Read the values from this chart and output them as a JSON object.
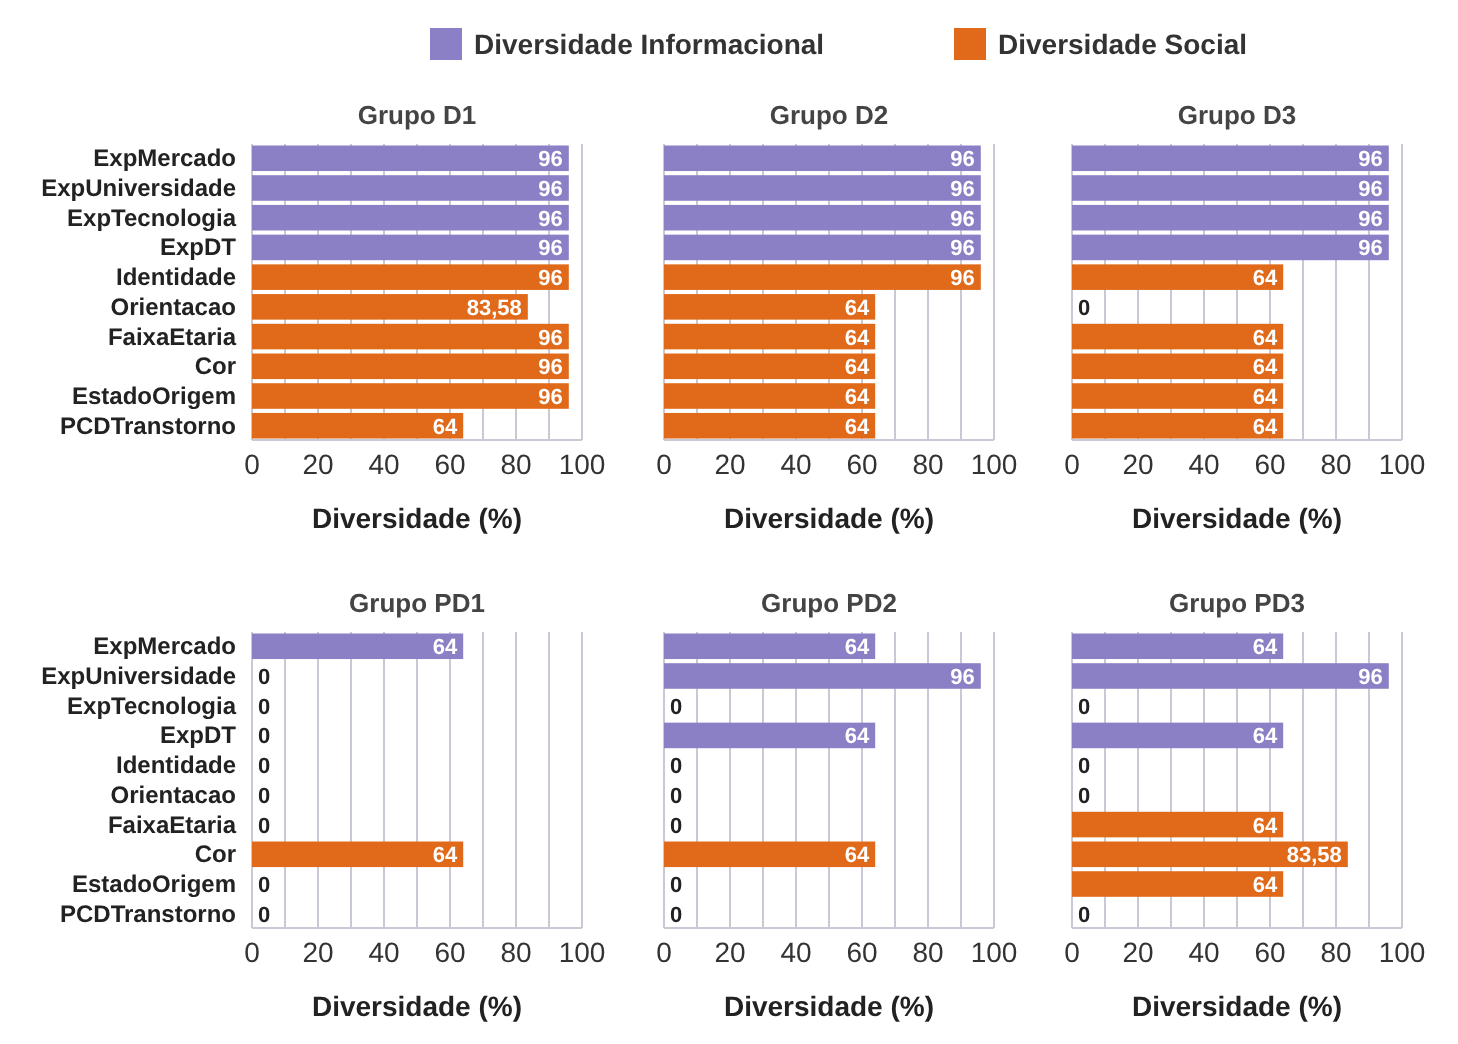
{
  "chart_data": [
    {
      "type": "bar",
      "orientation": "horizontal",
      "title": "Grupo D1",
      "xlabel": "Diversidade (%)",
      "legend": "top",
      "grid": "x",
      "xlim": [
        0,
        100
      ],
      "xticks": [
        0,
        {
          "value": 10,
          "label": null
        },
        20,
        {
          "value": 30,
          "label": null
        },
        40,
        {
          "value": 50,
          "label": null
        },
        60,
        {
          "value": 70,
          "label": null
        },
        80,
        {
          "value": 90,
          "label": null
        },
        100
      ],
      "categories": [
        "ExpMercado",
        "ExpUniversidade",
        "ExpTecnologia",
        "ExpDT",
        "Identidade",
        "Orientacao",
        "FaixaEtaria",
        "Cor",
        "EstadoOrigem",
        "PCDTranstorno"
      ],
      "series": [
        {
          "name": "Diversidade Informacional",
          "color": "#8b80c6",
          "values": [
            96,
            96,
            96,
            96,
            null,
            null,
            null,
            null,
            null,
            null
          ],
          "value_labels": [
            "96",
            "96",
            "96",
            "96",
            null,
            null,
            null,
            null,
            null,
            null
          ]
        },
        {
          "name": "Diversidade Social",
          "color": "#e0691a",
          "values": [
            null,
            null,
            null,
            null,
            96,
            83.58,
            96,
            96,
            96,
            64
          ],
          "value_labels": [
            null,
            null,
            null,
            null,
            "96",
            "83,58",
            "96",
            "96",
            "96",
            "64"
          ]
        }
      ]
    },
    {
      "type": "bar",
      "orientation": "horizontal",
      "title": "Grupo D2",
      "xlabel": "Diversidade (%)",
      "tick_labels": "x",
      "grid": "x",
      "xlim": [
        0,
        100
      ],
      "xticks": [
        0,
        {
          "value": 10,
          "label": null
        },
        20,
        {
          "value": 30,
          "label": null
        },
        40,
        {
          "value": 50,
          "label": null
        },
        60,
        {
          "value": 70,
          "label": null
        },
        80,
        {
          "value": 90,
          "label": null
        },
        100
      ],
      "categories": [
        null,
        null,
        null,
        null,
        null,
        null,
        null,
        null,
        null,
        null
      ],
      "series": [
        {
          "color": "#8b80c6",
          "values": [
            96,
            96,
            96,
            96,
            null,
            null,
            null,
            null,
            null,
            null
          ],
          "value_labels": [
            "96",
            "96",
            "96",
            "96",
            null,
            null,
            null,
            null,
            null,
            null
          ]
        },
        {
          "color": "#e0691a",
          "values": [
            null,
            null,
            null,
            null,
            96,
            64,
            64,
            64,
            64,
            64
          ],
          "value_labels": [
            null,
            null,
            null,
            null,
            "96",
            "64",
            "64",
            "64",
            "64",
            "64"
          ]
        }
      ]
    },
    {
      "type": "bar",
      "orientation": "horizontal",
      "title": "Grupo D3",
      "xlabel": "Diversidade (%)",
      "tick_labels": "x",
      "grid": "x",
      "xlim": [
        0,
        100
      ],
      "xticks": [
        0,
        {
          "value": 10,
          "label": null
        },
        20,
        {
          "value": 30,
          "label": null
        },
        40,
        {
          "value": 50,
          "label": null
        },
        60,
        {
          "value": 70,
          "label": null
        },
        80,
        {
          "value": 90,
          "label": null
        },
        100
      ],
      "categories": [
        null,
        null,
        null,
        null,
        null,
        null,
        null,
        null,
        null,
        null
      ],
      "series": [
        {
          "color": "#8b80c6",
          "values": [
            96,
            96,
            96,
            96,
            null,
            null,
            null,
            null,
            null,
            null
          ],
          "value_labels": [
            "96",
            "96",
            "96",
            "96",
            null,
            null,
            null,
            null,
            null,
            null
          ]
        },
        {
          "color": "#e0691a",
          "values": [
            null,
            null,
            null,
            null,
            64,
            0,
            64,
            64,
            64,
            64
          ],
          "value_labels": [
            null,
            null,
            null,
            null,
            "64",
            "0",
            "64",
            "64",
            "64",
            "64"
          ]
        }
      ]
    },
    {
      "type": "bar",
      "orientation": "horizontal",
      "title": "Grupo PD1",
      "xlabel": "Diversidade (%)",
      "grid": "x",
      "xlim": [
        0,
        100
      ],
      "xticks": [
        0,
        {
          "value": 10,
          "label": null
        },
        20,
        {
          "value": 30,
          "label": null
        },
        40,
        {
          "value": 50,
          "label": null
        },
        60,
        {
          "value": 70,
          "label": null
        },
        80,
        {
          "value": 90,
          "label": null
        },
        100
      ],
      "categories": [
        "ExpMercado",
        "ExpUniversidade",
        "ExpTecnologia",
        "ExpDT",
        "Identidade",
        "Orientacao",
        "FaixaEtaria",
        "Cor",
        "EstadoOrigem",
        "PCDTranstorno"
      ],
      "series": [
        {
          "color": "#8b80c6",
          "values": [
            64,
            0,
            0,
            0,
            null,
            null,
            null,
            null,
            null,
            null
          ],
          "value_labels": [
            "64",
            "0",
            "0",
            "0",
            null,
            null,
            null,
            null,
            null,
            null
          ]
        },
        {
          "color": "#e0691a",
          "values": [
            null,
            null,
            null,
            null,
            0,
            0,
            0,
            64,
            0,
            0
          ],
          "value_labels": [
            null,
            null,
            null,
            null,
            "0",
            "0",
            "0",
            "64",
            "0",
            "0"
          ]
        }
      ]
    },
    {
      "type": "bar",
      "orientation": "horizontal",
      "title": "Grupo PD2",
      "xlabel": "Diversidade (%)",
      "tick_labels": "x",
      "grid": "x",
      "xlim": [
        0,
        100
      ],
      "xticks": [
        0,
        {
          "value": 10,
          "label": null
        },
        20,
        {
          "value": 30,
          "label": null
        },
        40,
        {
          "value": 50,
          "label": null
        },
        60,
        {
          "value": 70,
          "label": null
        },
        80,
        {
          "value": 90,
          "label": null
        },
        100
      ],
      "categories": [
        null,
        null,
        null,
        null,
        null,
        null,
        null,
        null,
        null,
        null
      ],
      "series": [
        {
          "color": "#8b80c6",
          "values": [
            64,
            96,
            0,
            64,
            null,
            null,
            null,
            null,
            null,
            null
          ],
          "value_labels": [
            "64",
            "96",
            "0",
            "64",
            null,
            null,
            null,
            null,
            null,
            null
          ]
        },
        {
          "color": "#e0691a",
          "values": [
            null,
            null,
            null,
            null,
            0,
            0,
            0,
            64,
            0,
            0
          ],
          "value_labels": [
            null,
            null,
            null,
            null,
            "0",
            "0",
            "0",
            "64",
            "0",
            "0"
          ]
        }
      ]
    },
    {
      "type": "bar",
      "orientation": "horizontal",
      "title": "Grupo PD3",
      "xlabel": "Diversidade (%)",
      "tick_labels": "x",
      "grid": "x",
      "xlim": [
        0,
        100
      ],
      "xticks": [
        0,
        {
          "value": 10,
          "label": null
        },
        20,
        {
          "value": 30,
          "label": null
        },
        40,
        {
          "value": 50,
          "label": null
        },
        60,
        {
          "value": 70,
          "label": null
        },
        80,
        {
          "value": 90,
          "label": null
        },
        100
      ],
      "categories": [
        null,
        null,
        null,
        null,
        null,
        null,
        null,
        null,
        null,
        null
      ],
      "series": [
        {
          "color": "#8b80c6",
          "values": [
            64,
            96,
            0,
            64,
            null,
            null,
            null,
            null,
            null,
            null
          ],
          "value_labels": [
            "64",
            "96",
            "0",
            "64",
            null,
            null,
            null,
            null,
            null,
            null
          ]
        },
        {
          "color": "#e0691a",
          "values": [
            null,
            null,
            null,
            null,
            0,
            0,
            64,
            83.58,
            64,
            0
          ],
          "value_labels": [
            null,
            null,
            null,
            null,
            "0",
            "0",
            "64",
            "83,58",
            "64",
            "0"
          ]
        }
      ]
    }
  ]
}
